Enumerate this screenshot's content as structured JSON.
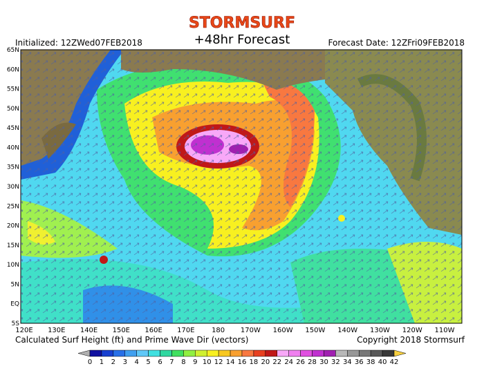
{
  "header": {
    "logo": "STORMSURF",
    "subtitle": "+48hr Forecast",
    "initialized": "Initialized: 12ZWed07FEB2018",
    "forecast_date": "Forecast Date: 12ZFri09FEB2018"
  },
  "map": {
    "lat_labels": [
      "65N",
      "60N",
      "55N",
      "50N",
      "45N",
      "40N",
      "35N",
      "30N",
      "25N",
      "20N",
      "15N",
      "10N",
      "5N",
      "EQ",
      "5S"
    ],
    "lon_labels": [
      "120E",
      "130E",
      "140E",
      "150E",
      "160E",
      "170E",
      "180",
      "170W",
      "160W",
      "150W",
      "140W",
      "130W",
      "120W",
      "110W"
    ]
  },
  "footer": {
    "caption": "Calculated Surf Height (ft) and Prime Wave Dir (vectors)",
    "copyright": "Copyright 2018 Stormsurf"
  },
  "colorbar": {
    "labels": [
      0,
      1,
      2,
      3,
      4,
      5,
      6,
      7,
      8,
      9,
      10,
      12,
      14,
      16,
      18,
      20,
      22,
      24,
      26,
      28,
      30,
      32,
      34,
      36,
      38,
      40,
      42
    ],
    "colors": [
      "#b0b0b0",
      "#1010a0",
      "#1840d0",
      "#2870e8",
      "#40a0f0",
      "#60c8f8",
      "#40e0e0",
      "#30d8a0",
      "#40e060",
      "#90f040",
      "#d0f030",
      "#f8f020",
      "#f8c820",
      "#f8a030",
      "#f87840",
      "#e84020",
      "#c01818",
      "#f8a8f8",
      "#f080f0",
      "#e050e0",
      "#c030d0",
      "#a020b0",
      "#b8b8b8",
      "#989898",
      "#787878",
      "#585858",
      "#383838",
      "#f8d040"
    ]
  }
}
